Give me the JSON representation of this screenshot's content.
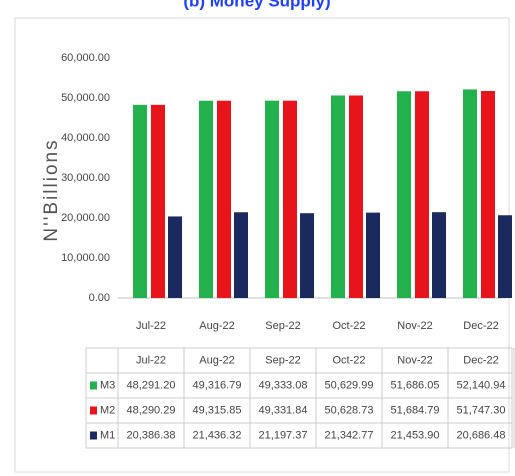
{
  "chart_data": {
    "type": "bar",
    "title": "(b) Money Supply)",
    "ylabel": "N''Billions",
    "categories": [
      "Jul-22",
      "Aug-22",
      "Sep-22",
      "Oct-22",
      "Nov-22",
      "Dec-22"
    ],
    "series": [
      {
        "name": "M3",
        "color": "#22b14c",
        "values": [
          48291.2,
          49316.79,
          49333.08,
          50629.99,
          51686.05,
          52140.94
        ],
        "value_labels": [
          "48,291.20",
          "49,316.79",
          "49,333.08",
          "50,629.99",
          "51,686.05",
          "52,140.94"
        ]
      },
      {
        "name": "M2",
        "color": "#e8141b",
        "values": [
          48290.29,
          49315.85,
          49331.84,
          50628.73,
          51684.79,
          51747.3
        ],
        "value_labels": [
          "48,290.29",
          "49,315.85",
          "49,331.84",
          "50,628.73",
          "51,684.79",
          "51,747.30"
        ]
      },
      {
        "name": "M1",
        "color": "#1a2a5e",
        "values": [
          20386.38,
          21436.32,
          21197.37,
          21342.77,
          21453.9,
          20686.48
        ],
        "value_labels": [
          "20,386.38",
          "21,436.32",
          "21,197.37",
          "21,342.77",
          "21,453.90",
          "20,686.48"
        ]
      }
    ],
    "ylim": [
      0,
      60000
    ],
    "yticks": [
      {
        "value": 0,
        "label": "0.00"
      },
      {
        "value": 10000,
        "label": "10,000.00"
      },
      {
        "value": 20000,
        "label": "20,000.00"
      },
      {
        "value": 30000,
        "label": "30,000.00"
      },
      {
        "value": 40000,
        "label": "40,000.00"
      },
      {
        "value": 50000,
        "label": "50,000.00"
      },
      {
        "value": 60000,
        "label": "60,000.00"
      }
    ],
    "grid": false
  }
}
